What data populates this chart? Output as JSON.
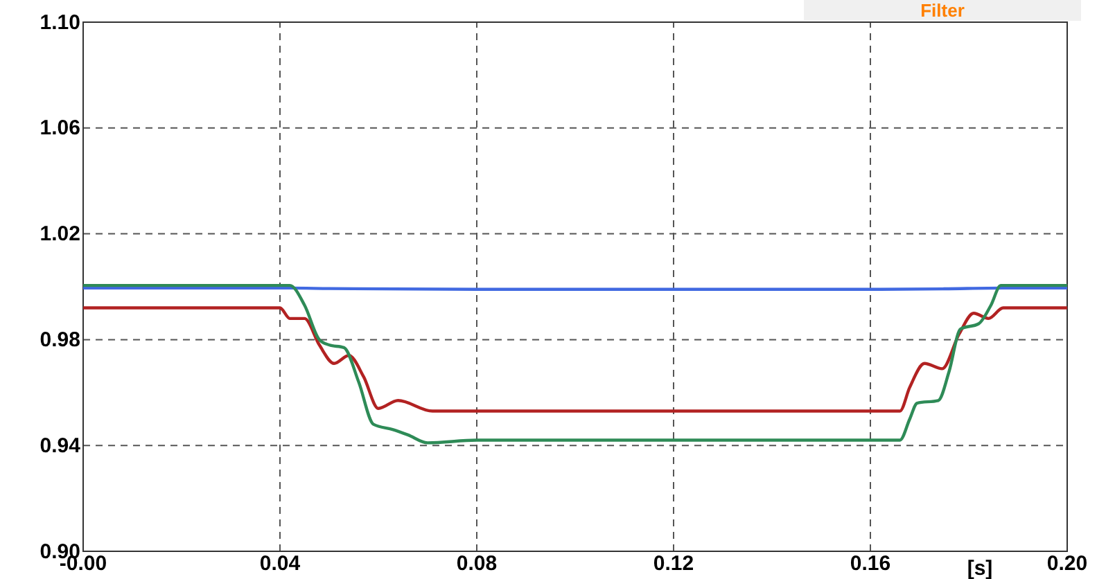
{
  "chart_data": {
    "type": "line",
    "xlabel": "[s]",
    "annotations": [
      "Filter"
    ],
    "xlim": [
      0,
      0.2
    ],
    "xticks": [
      {
        "value": 0,
        "label": "-0.00"
      },
      0.04,
      0.08,
      0.12,
      0.16,
      {
        "value": 0.2,
        "label": "0.20"
      }
    ],
    "ylim": [
      0.9,
      1.1
    ],
    "yticks": [
      {
        "value": 0.9,
        "label": "0.90"
      },
      0.94,
      0.98,
      1.02,
      1.06,
      {
        "value": 1.1,
        "label": "1.10"
      }
    ],
    "grid": true,
    "marker": "none",
    "line_style": "solid",
    "series": [
      {
        "color": "#4169e1",
        "x": [
          0,
          0.042,
          0.05,
          0.08,
          0.12,
          0.16,
          0.175,
          0.187,
          0.2
        ],
        "values": [
          0.9995,
          0.9995,
          0.9993,
          0.999,
          0.999,
          0.999,
          0.9992,
          0.9995,
          0.9995
        ]
      },
      {
        "color": "#b22222",
        "x": [
          0,
          0.04,
          0.042,
          0.045,
          0.048,
          0.051,
          0.054,
          0.057,
          0.06,
          0.064,
          0.071,
          0.08,
          0.12,
          0.166,
          0.168,
          0.171,
          0.1746,
          0.178,
          0.181,
          0.184,
          0.187,
          0.2
        ],
        "values": [
          0.992,
          0.992,
          0.988,
          0.988,
          0.978,
          0.971,
          0.974,
          0.966,
          0.954,
          0.957,
          0.953,
          0.953,
          0.953,
          0.953,
          0.962,
          0.971,
          0.969,
          0.982,
          0.99,
          0.988,
          0.992,
          0.992
        ]
      },
      {
        "color": "#2e8b57",
        "x": [
          0,
          0.042,
          0.045,
          0.048,
          0.05,
          0.053,
          0.056,
          0.059,
          0.063,
          0.066,
          0.07,
          0.08,
          0.12,
          0.166,
          0.168,
          0.1695,
          0.1738,
          0.176,
          0.1783,
          0.182,
          0.1845,
          0.1865,
          0.2
        ],
        "values": [
          1.0005,
          1.0005,
          0.993,
          0.98,
          0.978,
          0.977,
          0.964,
          0.948,
          0.946,
          0.944,
          0.941,
          0.942,
          0.942,
          0.942,
          0.95,
          0.956,
          0.957,
          0.968,
          0.984,
          0.986,
          0.993,
          1.0005,
          1.0005
        ]
      }
    ]
  }
}
